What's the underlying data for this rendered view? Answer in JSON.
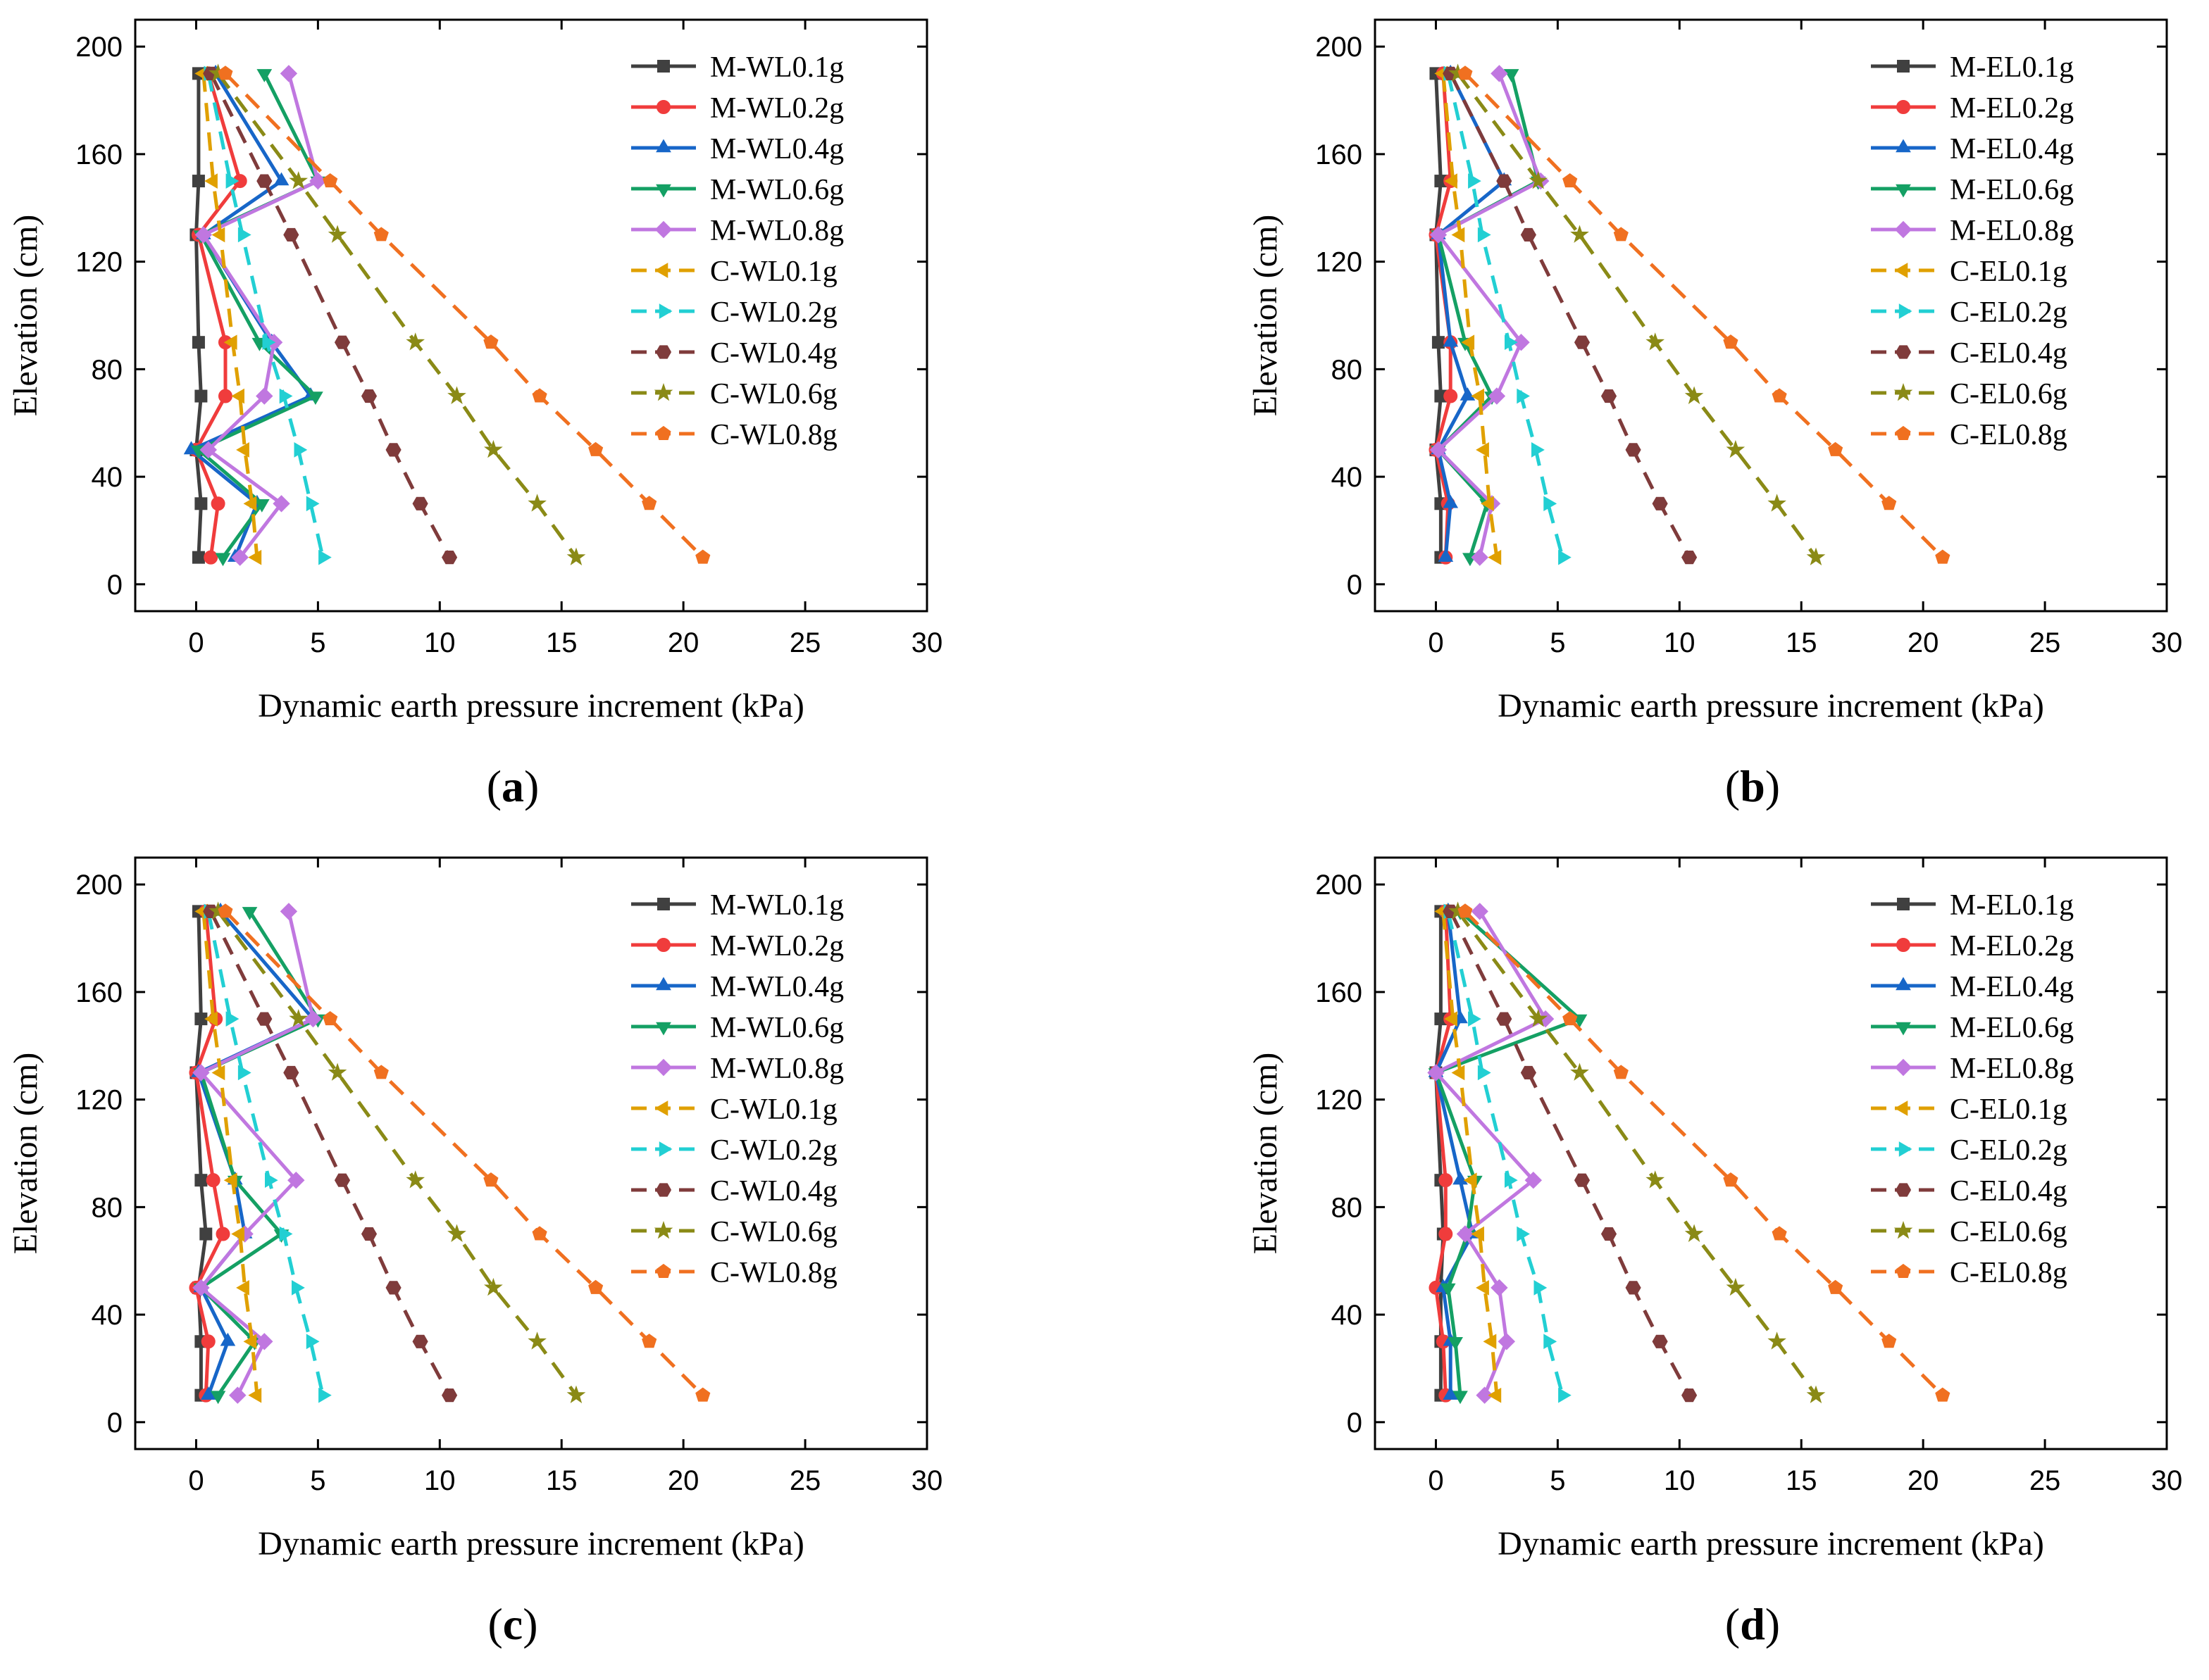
{
  "figure": {
    "panels_label_style": "(x)",
    "series_styles": [
      {
        "color": "#404040",
        "marker": "square",
        "dash": false
      },
      {
        "color": "#f03c3c",
        "marker": "circle",
        "dash": false
      },
      {
        "color": "#1766c8",
        "marker": "triangle-up",
        "dash": false
      },
      {
        "color": "#14a064",
        "marker": "triangle-down",
        "dash": false
      },
      {
        "color": "#c077e0",
        "marker": "diamond",
        "dash": false
      },
      {
        "color": "#e0a000",
        "marker": "triangle-left",
        "dash": true
      },
      {
        "color": "#22cfd3",
        "marker": "triangle-right",
        "dash": true
      },
      {
        "color": "#7f3b3b",
        "marker": "hexagon",
        "dash": true
      },
      {
        "color": "#8a8a16",
        "marker": "star",
        "dash": true
      },
      {
        "color": "#f07020",
        "marker": "pentagon",
        "dash": true
      }
    ]
  },
  "chart_data": [
    {
      "panel": "a",
      "caption": "a",
      "type": "line",
      "xlabel": "Dynamic earth pressure increment (kPa)",
      "ylabel": "Elevation (cm)",
      "xlim": [
        -2.5,
        30
      ],
      "ylim": [
        -10,
        210
      ],
      "xticks": [
        0,
        5,
        10,
        15,
        20,
        25,
        30
      ],
      "yticks": [
        0,
        40,
        80,
        120,
        160,
        200
      ],
      "y": [
        190,
        150,
        130,
        90,
        70,
        50,
        30,
        10
      ],
      "series": [
        {
          "name": "M-WL0.1g",
          "x": [
            0.1,
            0.1,
            0.0,
            0.1,
            0.2,
            0.0,
            0.2,
            0.1
          ]
        },
        {
          "name": "M-WL0.2g",
          "x": [
            0.5,
            1.8,
            0.1,
            1.2,
            1.2,
            0.0,
            0.9,
            0.6
          ]
        },
        {
          "name": "M-WL0.4g",
          "x": [
            0.8,
            3.5,
            0.3,
            3.1,
            4.7,
            -0.2,
            2.5,
            1.6
          ]
        },
        {
          "name": "M-WL0.6g",
          "x": [
            2.8,
            5.0,
            0.2,
            2.6,
            4.9,
            0.1,
            2.7,
            1.1
          ]
        },
        {
          "name": "M-WL0.8g",
          "x": [
            3.8,
            5.0,
            0.3,
            3.2,
            2.8,
            0.5,
            3.5,
            1.8
          ]
        },
        {
          "name": "C-WL0.1g",
          "x": [
            0.3,
            0.7,
            1.0,
            1.5,
            1.8,
            2.0,
            2.3,
            2.5
          ]
        },
        {
          "name": "C-WL0.2g",
          "x": [
            0.5,
            1.4,
            1.9,
            2.9,
            3.6,
            4.2,
            4.7,
            5.2
          ]
        },
        {
          "name": "C-WL0.4g",
          "x": [
            0.6,
            2.8,
            3.9,
            6.0,
            7.1,
            8.1,
            9.2,
            10.4
          ]
        },
        {
          "name": "C-WL0.6g",
          "x": [
            0.9,
            4.2,
            5.8,
            9.0,
            10.7,
            12.2,
            14.0,
            15.6
          ]
        },
        {
          "name": "C-WL0.8g",
          "x": [
            1.2,
            5.5,
            7.6,
            12.1,
            14.1,
            16.4,
            18.6,
            20.8
          ]
        }
      ]
    },
    {
      "panel": "b",
      "caption": "b",
      "type": "line",
      "xlabel": "Dynamic earth pressure increment (kPa)",
      "ylabel": "Elevation (cm)",
      "xlim": [
        -2.5,
        30
      ],
      "ylim": [
        -10,
        210
      ],
      "xticks": [
        0,
        5,
        10,
        15,
        20,
        25,
        30
      ],
      "yticks": [
        0,
        40,
        80,
        120,
        160,
        200
      ],
      "y": [
        190,
        150,
        130,
        90,
        70,
        50,
        30,
        10
      ],
      "series": [
        {
          "name": "M-EL0.1g",
          "x": [
            0.0,
            0.2,
            0.0,
            0.1,
            0.2,
            0.0,
            0.2,
            0.2
          ]
        },
        {
          "name": "M-EL0.2g",
          "x": [
            0.3,
            0.6,
            0.0,
            0.6,
            0.6,
            0.0,
            0.5,
            0.4
          ]
        },
        {
          "name": "M-EL0.4g",
          "x": [
            0.6,
            2.8,
            0.1,
            0.6,
            1.3,
            0.1,
            0.6,
            0.4
          ]
        },
        {
          "name": "M-EL0.6g",
          "x": [
            3.1,
            4.2,
            0.1,
            1.2,
            2.3,
            0.1,
            2.1,
            1.4
          ]
        },
        {
          "name": "M-EL0.8g",
          "x": [
            2.6,
            4.3,
            0.1,
            3.5,
            2.5,
            0.1,
            2.3,
            1.8
          ]
        },
        {
          "name": "C-EL0.1g",
          "x": [
            0.3,
            0.7,
            1.0,
            1.4,
            1.8,
            2.0,
            2.2,
            2.5
          ]
        },
        {
          "name": "C-EL0.2g",
          "x": [
            0.5,
            1.5,
            1.9,
            3.0,
            3.5,
            4.1,
            4.6,
            5.2
          ]
        },
        {
          "name": "C-EL0.4g",
          "x": [
            0.6,
            2.8,
            3.8,
            6.0,
            7.1,
            8.1,
            9.2,
            10.4
          ]
        },
        {
          "name": "C-EL0.6g",
          "x": [
            0.9,
            4.2,
            5.9,
            9.0,
            10.6,
            12.3,
            14.0,
            15.6
          ]
        },
        {
          "name": "C-EL0.8g",
          "x": [
            1.2,
            5.5,
            7.6,
            12.1,
            14.1,
            16.4,
            18.6,
            20.8
          ]
        }
      ]
    },
    {
      "panel": "c",
      "caption": "c",
      "type": "line",
      "xlabel": "Dynamic earth pressure increment (kPa)",
      "ylabel": "Elevation (cm)",
      "xlim": [
        -2.5,
        30
      ],
      "ylim": [
        -10,
        210
      ],
      "xticks": [
        0,
        5,
        10,
        15,
        20,
        25,
        30
      ],
      "yticks": [
        0,
        40,
        80,
        120,
        160,
        200
      ],
      "y": [
        190,
        150,
        130,
        90,
        70,
        50,
        30,
        10
      ],
      "series": [
        {
          "name": "M-WL0.1g",
          "x": [
            0.1,
            0.2,
            0.0,
            0.2,
            0.4,
            0.1,
            0.2,
            0.2
          ]
        },
        {
          "name": "M-WL0.2g",
          "x": [
            0.4,
            0.8,
            0.0,
            0.7,
            1.1,
            0.0,
            0.5,
            0.4
          ]
        },
        {
          "name": "M-WL0.4g",
          "x": [
            1.0,
            4.8,
            0.1,
            1.6,
            2.0,
            0.2,
            1.3,
            0.5
          ]
        },
        {
          "name": "M-WL0.6g",
          "x": [
            2.2,
            5.0,
            0.2,
            1.6,
            3.5,
            0.2,
            2.4,
            0.9
          ]
        },
        {
          "name": "M-WL0.8g",
          "x": [
            3.8,
            4.8,
            0.2,
            4.1,
            2.0,
            0.2,
            2.8,
            1.7
          ]
        },
        {
          "name": "C-WL0.1g",
          "x": [
            0.3,
            0.7,
            1.0,
            1.5,
            1.8,
            2.0,
            2.3,
            2.5
          ]
        },
        {
          "name": "C-WL0.2g",
          "x": [
            0.5,
            1.4,
            1.9,
            3.0,
            3.6,
            4.1,
            4.7,
            5.2
          ]
        },
        {
          "name": "C-WL0.4g",
          "x": [
            0.6,
            2.8,
            3.9,
            6.0,
            7.1,
            8.1,
            9.2,
            10.4
          ]
        },
        {
          "name": "C-WL0.6g",
          "x": [
            0.9,
            4.2,
            5.8,
            9.0,
            10.7,
            12.2,
            14.0,
            15.6
          ]
        },
        {
          "name": "C-WL0.8g",
          "x": [
            1.2,
            5.5,
            7.6,
            12.1,
            14.1,
            16.4,
            18.6,
            20.8
          ]
        }
      ]
    },
    {
      "panel": "d",
      "caption": "d",
      "type": "line",
      "xlabel": "Dynamic earth pressure increment (kPa)",
      "ylabel": "Elevation (cm)",
      "xlim": [
        -2.5,
        30
      ],
      "ylim": [
        -10,
        210
      ],
      "xticks": [
        0,
        5,
        10,
        15,
        20,
        25,
        30
      ],
      "yticks": [
        0,
        40,
        80,
        120,
        160,
        200
      ],
      "y": [
        190,
        150,
        130,
        90,
        70,
        50,
        30,
        10
      ],
      "series": [
        {
          "name": "M-EL0.1g",
          "x": [
            0.2,
            0.2,
            0.0,
            0.2,
            0.3,
            0.2,
            0.2,
            0.2
          ]
        },
        {
          "name": "M-EL0.2g",
          "x": [
            0.4,
            0.6,
            0.0,
            0.4,
            0.4,
            0.0,
            0.3,
            0.4
          ]
        },
        {
          "name": "M-EL0.4g",
          "x": [
            0.5,
            1.0,
            0.0,
            1.0,
            1.5,
            0.3,
            0.6,
            0.6
          ]
        },
        {
          "name": "M-EL0.6g",
          "x": [
            1.0,
            5.9,
            0.0,
            1.6,
            1.3,
            0.5,
            0.8,
            1.0
          ]
        },
        {
          "name": "M-EL0.8g",
          "x": [
            1.8,
            4.5,
            0.0,
            4.0,
            1.2,
            2.6,
            2.9,
            2.0
          ]
        },
        {
          "name": "C-EL0.1g",
          "x": [
            0.3,
            0.7,
            1.0,
            1.5,
            1.8,
            2.0,
            2.3,
            2.5
          ]
        },
        {
          "name": "C-EL0.2g",
          "x": [
            0.5,
            1.5,
            1.9,
            3.0,
            3.5,
            4.2,
            4.6,
            5.2
          ]
        },
        {
          "name": "C-EL0.4g",
          "x": [
            0.6,
            2.8,
            3.8,
            6.0,
            7.1,
            8.1,
            9.2,
            10.4
          ]
        },
        {
          "name": "C-EL0.6g",
          "x": [
            0.9,
            4.2,
            5.9,
            9.0,
            10.6,
            12.3,
            14.0,
            15.6
          ]
        },
        {
          "name": "C-EL0.8g",
          "x": [
            1.2,
            5.5,
            7.6,
            12.1,
            14.1,
            16.4,
            18.6,
            20.8
          ]
        }
      ]
    }
  ]
}
